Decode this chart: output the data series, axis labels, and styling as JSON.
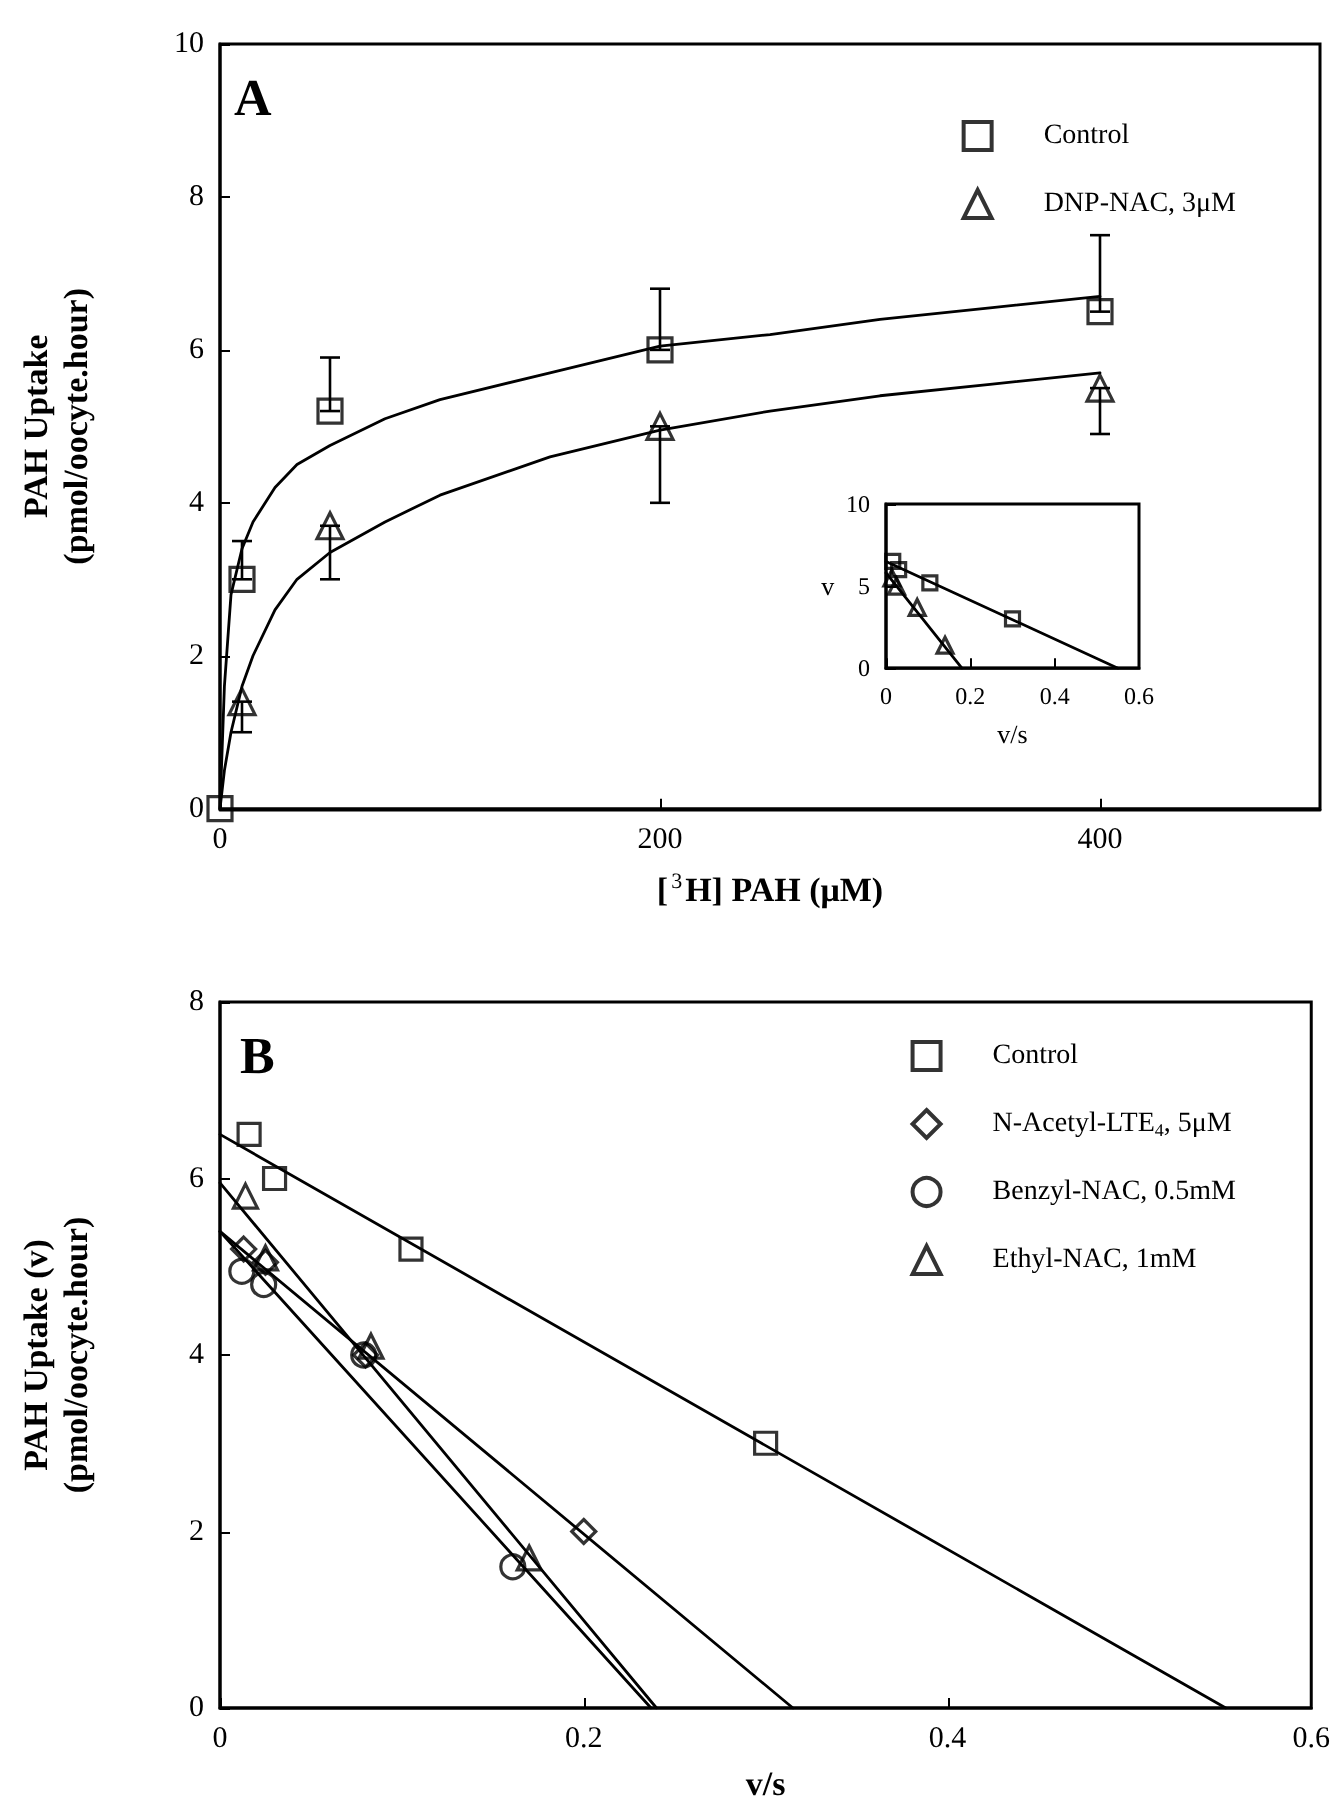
{
  "chart_data": [
    {
      "type": "scatter",
      "xlabel": "[$^{3}$H] PAH (μM)",
      "ylabel": "PAH Uptake\n(pmol/oocyte.hour)",
      "annotations": [
        "A"
      ],
      "xlim": [
        0,
        500
      ],
      "xticks": [
        0,
        200,
        400
      ],
      "ylim": [
        0,
        10
      ],
      "yticks": [
        0,
        2,
        4,
        6,
        8,
        10
      ],
      "legend": "top right",
      "grid": false,
      "series": [
        {
          "name": "Control",
          "color": "#000000",
          "marker": "square",
          "x": [
            0,
            10,
            50,
            200,
            400
          ],
          "values": [
            0,
            3.0,
            5.2,
            6.0,
            6.5
          ],
          "errors": [
            null,
            [
              3.0,
              3.5
            ],
            [
              5.2,
              5.9
            ],
            [
              6.0,
              6.8
            ],
            [
              6.5,
              7.5
            ]
          ]
        },
        {
          "name": "DNP-NAC, 3μM",
          "color": "#000000",
          "marker": "triangle",
          "x": [
            10,
            50,
            200,
            400
          ],
          "values": [
            1.4,
            3.7,
            5.0,
            5.5
          ],
          "errors": [
            [
              1.0,
              1.4
            ],
            [
              3.0,
              3.7
            ],
            [
              4.0,
              5.0
            ],
            [
              4.9,
              5.5
            ]
          ]
        },
        {
          "type": "line",
          "color": "#000000",
          "marker": "none",
          "x": [
            0,
            2,
            5,
            10,
            15,
            25,
            35,
            50,
            75,
            100,
            150,
            200,
            250,
            300,
            350,
            400
          ],
          "values": [
            0,
            1.6,
            2.8,
            3.4,
            3.75,
            4.2,
            4.5,
            4.75,
            5.1,
            5.35,
            5.7,
            6.05,
            6.2,
            6.4,
            6.55,
            6.7
          ]
        },
        {
          "type": "line",
          "color": "#000000",
          "marker": "none",
          "x": [
            0,
            2,
            5,
            10,
            15,
            25,
            35,
            50,
            75,
            100,
            150,
            200,
            250,
            300,
            350,
            400
          ],
          "values": [
            0,
            0.5,
            1.0,
            1.6,
            2.0,
            2.6,
            3.0,
            3.35,
            3.75,
            4.1,
            4.6,
            4.95,
            5.2,
            5.4,
            5.55,
            5.7
          ]
        }
      ]
    },
    {
      "type": "scatter",
      "xlabel": "v/s",
      "ylabel": "v",
      "xlim": [
        0,
        0.6
      ],
      "xticks": [
        0,
        0.2,
        0.4,
        0.6
      ],
      "ylim": [
        0,
        10
      ],
      "yticks": [
        0,
        5,
        10
      ],
      "grid": false,
      "series": [
        {
          "color": "#000000",
          "marker": "square",
          "x": [
            0.016,
            0.03,
            0.104,
            0.3
          ],
          "values": [
            6.5,
            6.0,
            5.2,
            3.0
          ]
        },
        {
          "color": "#000000",
          "marker": "triangle",
          "x": [
            0.014,
            0.025,
            0.074,
            0.14
          ],
          "values": [
            5.5,
            5.0,
            3.7,
            1.4
          ]
        },
        {
          "type": "line",
          "color": "#000000",
          "marker": "none",
          "x": [
            0,
            0.55
          ],
          "values": [
            6.5,
            0
          ]
        },
        {
          "type": "line",
          "color": "#000000",
          "marker": "none",
          "x": [
            0,
            0.18
          ],
          "values": [
            5.8,
            0
          ]
        }
      ]
    },
    {
      "type": "scatter",
      "xlabel": "v/s",
      "ylabel": "PAH Uptake (v)\n(pmol/oocyte.hour)",
      "annotations": [
        "B"
      ],
      "xlim": [
        0,
        0.6
      ],
      "xticks": [
        0,
        0.2,
        0.4,
        0.6
      ],
      "ylim": [
        0,
        8
      ],
      "yticks": [
        0,
        2,
        4,
        6,
        8
      ],
      "legend": "top right",
      "grid": false,
      "series": [
        {
          "name": "Control",
          "color": "#000000",
          "marker": "square",
          "x": [
            0.016,
            0.03,
            0.105,
            0.3
          ],
          "values": [
            6.5,
            6.0,
            5.2,
            3.0
          ]
        },
        {
          "name": "N-Acetyl-LTE$_{4}$, 5μM",
          "color": "#000000",
          "marker": "diamond",
          "x": [
            0.013,
            0.025,
            0.08,
            0.2
          ],
          "values": [
            5.2,
            5.05,
            4.0,
            2.0
          ]
        },
        {
          "name": "Benzyl-NAC, 0.5mM",
          "color": "#000000",
          "marker": "circle",
          "x": [
            0.012,
            0.024,
            0.079,
            0.161
          ],
          "values": [
            4.95,
            4.8,
            4.0,
            1.6
          ]
        },
        {
          "name": "Ethyl-NAC, 1mM",
          "color": "#000000",
          "marker": "triangle",
          "x": [
            0.014,
            0.025,
            0.083,
            0.17
          ],
          "values": [
            5.8,
            5.1,
            4.1,
            1.7
          ]
        },
        {
          "type": "line",
          "color": "#000000",
          "marker": "none",
          "x": [
            0,
            0.553
          ],
          "values": [
            6.5,
            0
          ]
        },
        {
          "type": "line",
          "color": "#000000",
          "marker": "none",
          "x": [
            0,
            0.315
          ],
          "values": [
            5.4,
            0
          ]
        },
        {
          "type": "line",
          "color": "#000000",
          "marker": "none",
          "x": [
            0,
            0.237
          ],
          "values": [
            5.4,
            0
          ]
        },
        {
          "type": "line",
          "color": "#000000",
          "marker": "none",
          "x": [
            0,
            0.24
          ],
          "values": [
            5.95,
            0
          ]
        }
      ]
    }
  ]
}
